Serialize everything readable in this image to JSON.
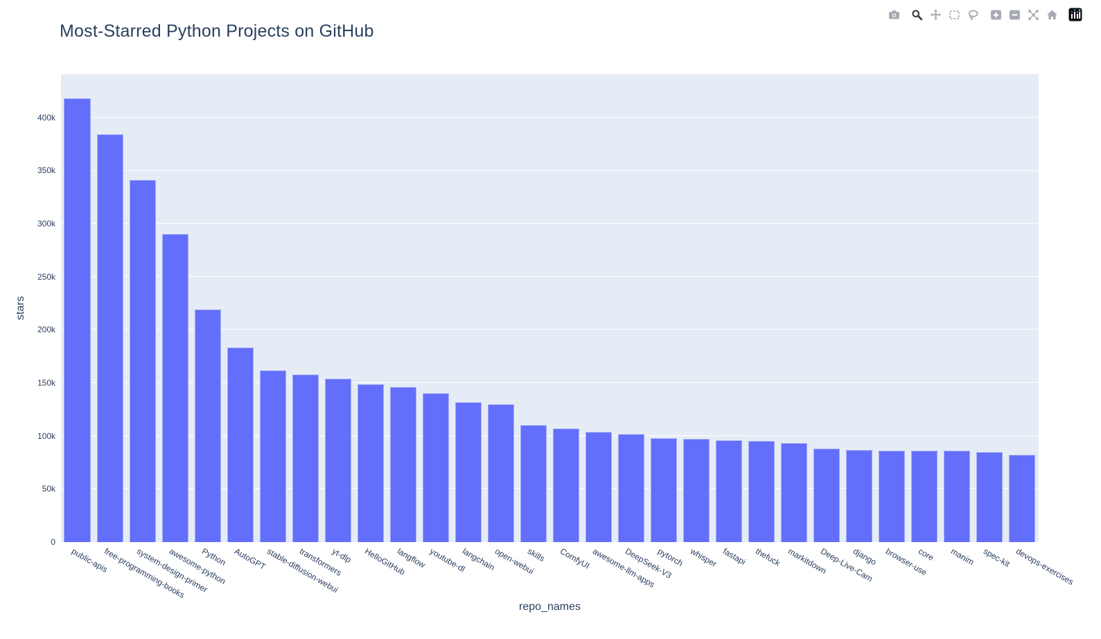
{
  "page": {
    "background": "#ffffff"
  },
  "header": {
    "title": "Most-Starred Python Projects on GitHub"
  },
  "modebar": {
    "inactive_color": "#a5a9b2",
    "active_color": "#3d4046",
    "buttons": [
      {
        "name": "download-plot",
        "icon": "camera-icon",
        "active": false
      },
      {
        "name": "zoom",
        "icon": "magnifier-icon",
        "active": true
      },
      {
        "name": "pan",
        "icon": "pan-arrows-icon",
        "active": false
      },
      {
        "name": "box-select",
        "icon": "dashed-box-icon",
        "active": false
      },
      {
        "name": "lasso-select",
        "icon": "lasso-icon",
        "active": false
      },
      {
        "name": "zoom-in",
        "icon": "plus-square-icon",
        "active": false
      },
      {
        "name": "zoom-out",
        "icon": "minus-square-icon",
        "active": false
      },
      {
        "name": "autoscale",
        "icon": "expand-icon",
        "active": false
      },
      {
        "name": "reset-axes",
        "icon": "home-icon",
        "active": false
      },
      {
        "name": "plotly-logo",
        "icon": "plotly-logo-icon",
        "active": false
      }
    ]
  },
  "chart_data": {
    "type": "bar",
    "title": "Most-Starred Python Projects on GitHub",
    "xlabel": "repo_names",
    "ylabel": "stars",
    "categories": [
      "public-apis",
      "free-programming-books",
      "system-design-primer",
      "awesome-python",
      "Python",
      "AutoGPT",
      "stable-diffusion-webui",
      "transformers",
      "yt-dlp",
      "HelloGitHub",
      "langflow",
      "youtube-dl",
      "langchain",
      "open-webui",
      "skills",
      "ComfyUI",
      "awesome-llm-apps",
      "DeepSeek-V3",
      "pytorch",
      "whisper",
      "fastapi",
      "thefuck",
      "markitdown",
      "Deep-Live-Cam",
      "django",
      "browser-use",
      "core",
      "manim",
      "spec-kit",
      "devops-exercises"
    ],
    "values": [
      418000,
      384000,
      341000,
      290000,
      219000,
      183000,
      162000,
      158000,
      154000,
      149000,
      146000,
      140000,
      132000,
      130000,
      110000,
      107000,
      104000,
      102000,
      98000,
      97000,
      96000,
      95000,
      93000,
      88000,
      87000,
      86000,
      86000,
      86000,
      85000,
      82000
    ],
    "ylim": [
      0,
      441000
    ],
    "yticks": [
      {
        "value": 0,
        "label": "0"
      },
      {
        "value": 50000,
        "label": "50k"
      },
      {
        "value": 100000,
        "label": "100k"
      },
      {
        "value": 150000,
        "label": "150k"
      },
      {
        "value": 200000,
        "label": "200k"
      },
      {
        "value": 250000,
        "label": "250k"
      },
      {
        "value": 300000,
        "label": "300k"
      },
      {
        "value": 350000,
        "label": "350k"
      },
      {
        "value": 400000,
        "label": "400k"
      }
    ],
    "x_tick_angle": 30,
    "grid": true,
    "legend": "none",
    "bar_color": "#636EFA",
    "bar_border_color": "#a3aef9",
    "plot_bg": "#E5ECF6",
    "grid_color": "#ffffff",
    "text_color": "#2a3f5f"
  }
}
